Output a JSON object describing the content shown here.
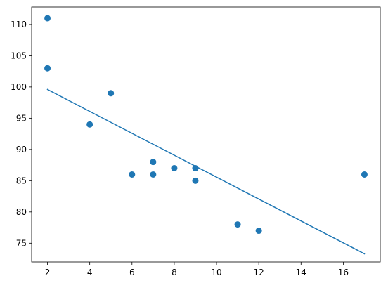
{
  "chart_data": {
    "type": "scatter",
    "title": "",
    "xlabel": "",
    "ylabel": "",
    "xlim": [
      1.25,
      17.75
    ],
    "ylim": [
      72.0,
      112.8
    ],
    "grid": false,
    "x_ticks": [
      2,
      4,
      6,
      8,
      10,
      12,
      14,
      16
    ],
    "y_ticks": [
      75,
      80,
      85,
      90,
      95,
      100,
      105,
      110
    ],
    "colors": {
      "points": "#1f77b4",
      "line": "#1f77b4",
      "axes": "#000000"
    },
    "series": [
      {
        "type": "scatter",
        "points": [
          {
            "x": 5,
            "y": 99
          },
          {
            "x": 7,
            "y": 86
          },
          {
            "x": 8,
            "y": 87
          },
          {
            "x": 7,
            "y": 88
          },
          {
            "x": 2,
            "y": 111
          },
          {
            "x": 17,
            "y": 86
          },
          {
            "x": 2,
            "y": 103
          },
          {
            "x": 9,
            "y": 87
          },
          {
            "x": 4,
            "y": 94
          },
          {
            "x": 11,
            "y": 78
          },
          {
            "x": 12,
            "y": 77
          },
          {
            "x": 9,
            "y": 85
          },
          {
            "x": 6,
            "y": 86
          }
        ]
      },
      {
        "type": "line",
        "points": [
          {
            "x": 2,
            "y": 99.6
          },
          {
            "x": 17,
            "y": 73.3
          }
        ]
      }
    ]
  }
}
